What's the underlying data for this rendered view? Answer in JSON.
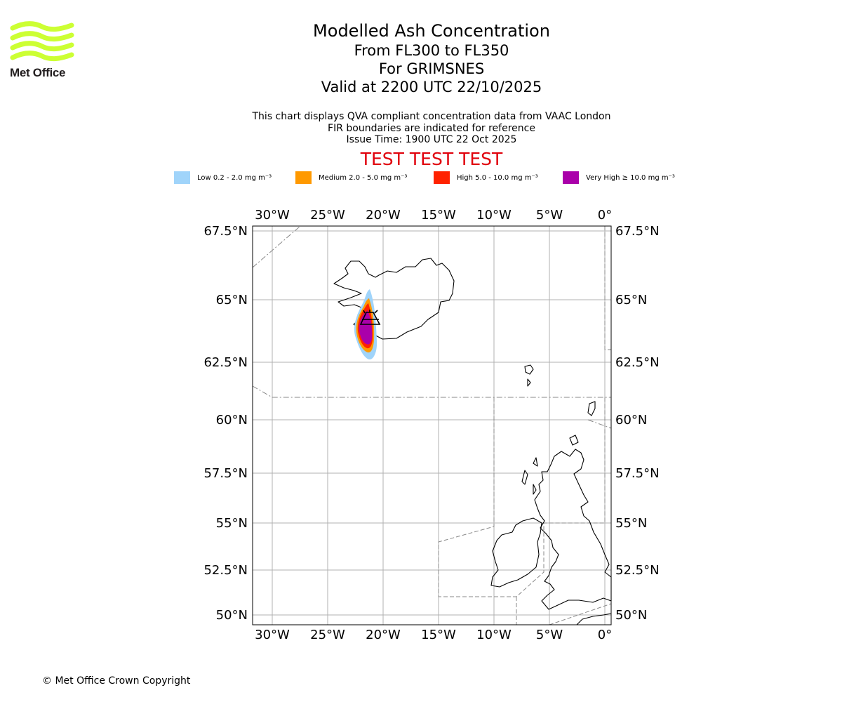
{
  "brand": {
    "name": "Met Office",
    "logo_color": "#ccff33"
  },
  "header": {
    "title": "Modelled Ash Concentration",
    "flight_levels": "From FL300 to FL350",
    "volcano": "For GRIMSNES",
    "valid_time": "Valid at 2200 UTC 22/10/2025"
  },
  "info": {
    "line1": "This chart displays QVA compliant concentration data from VAAC London",
    "line2": "FIR boundaries are indicated for reference",
    "line3": "Issue Time: 1900 UTC 22 Oct 2025"
  },
  "test_banner": "TEST TEST TEST",
  "legend": [
    {
      "label": "Low 0.2 - 2.0 mg m⁻³",
      "color": "#a0d4fa"
    },
    {
      "label": "Medium 2.0 - 5.0 mg m⁻³",
      "color": "#ff9900"
    },
    {
      "label": "High 5.0 - 10.0 mg m⁻³",
      "color": "#ff2200"
    },
    {
      "label": "Very High ≥ 10.0 mg m⁻³",
      "color": "#aa00aa"
    }
  ],
  "map": {
    "lon_labels": [
      "30°W",
      "25°W",
      "20°W",
      "15°W",
      "10°W",
      "5°W",
      "0°"
    ],
    "lat_labels": [
      "67.5°N",
      "65°N",
      "62.5°N",
      "60°N",
      "57.5°N",
      "55°N",
      "52.5°N",
      "50°N"
    ]
  },
  "copyright": "© Met Office Crown Copyright"
}
